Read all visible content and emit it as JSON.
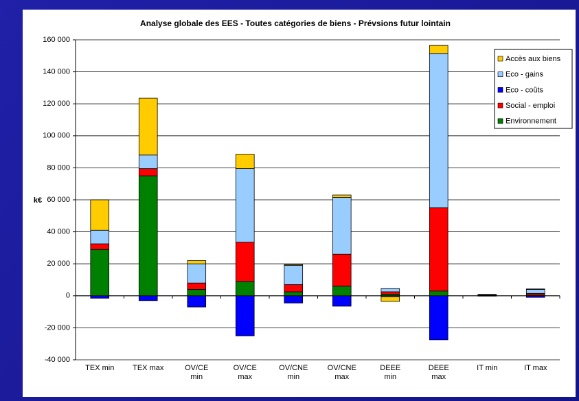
{
  "chart_data": {
    "type": "stacked_bar",
    "title": "Analyse globale des EES - Toutes catégories de biens - Prévsions futur lointain",
    "y_label": "k€",
    "categories": [
      "TEX min",
      "TEX max",
      "OV/CE min",
      "OV/CE max",
      "OV/CNE min",
      "OV/CNE max",
      "DEEE min",
      "DEEE max",
      "IT min",
      "IT max"
    ],
    "series": [
      {
        "name": "Accès aux biens",
        "color": "#ffcc00",
        "values": [
          19000,
          35500,
          2000,
          9000,
          500,
          1500,
          -3000,
          5000,
          100,
          300
        ]
      },
      {
        "name": "Eco - gains",
        "color": "#99ccff",
        "values": [
          8500,
          8500,
          12000,
          46000,
          12000,
          35500,
          2000,
          96500,
          300,
          2500
        ]
      },
      {
        "name": "Eco - coûts",
        "color": "#0000ff",
        "values": [
          -1500,
          -3000,
          -7000,
          -25000,
          -4500,
          -6500,
          -500,
          -27500,
          -200,
          -1000
        ]
      },
      {
        "name": "Social - emploi",
        "color": "#ff0000",
        "values": [
          3500,
          4500,
          4000,
          24500,
          4500,
          20000,
          1500,
          52000,
          300,
          1000
        ]
      },
      {
        "name": "Environnement",
        "color": "#008000",
        "values": [
          29000,
          75000,
          4000,
          9000,
          2500,
          6000,
          1000,
          3000,
          200,
          500
        ]
      }
    ],
    "ylim": [
      -40000,
      160000
    ],
    "yticks": [
      {
        "value": -40000,
        "label": "-40 000"
      },
      {
        "value": -20000,
        "label": "-20 000"
      },
      0,
      {
        "value": 20000,
        "label": "20 000"
      },
      {
        "value": 40000,
        "label": "40 000"
      },
      {
        "value": 60000,
        "label": "60 000"
      },
      {
        "value": 80000,
        "label": "80 000"
      },
      {
        "value": 100000,
        "label": "100 000"
      },
      {
        "value": 120000,
        "label": "120 000"
      },
      {
        "value": 140000,
        "label": "140 000"
      },
      {
        "value": 160000,
        "label": "160 000"
      }
    ],
    "grid": true,
    "legend": "top-right"
  }
}
